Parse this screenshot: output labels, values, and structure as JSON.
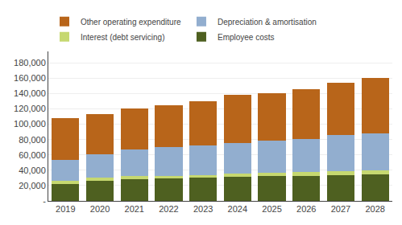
{
  "chart_data": {
    "type": "bar",
    "stacked": true,
    "categories": [
      "2019",
      "2020",
      "2021",
      "2022",
      "2023",
      "2024",
      "2025",
      "2026",
      "2027",
      "2028"
    ],
    "series": [
      {
        "name": "Employee costs",
        "color": "#4E6020",
        "values": [
          22000,
          26000,
          28000,
          29000,
          30000,
          31000,
          32000,
          33000,
          34000,
          35000
        ]
      },
      {
        "name": "Interest (debt servicing)",
        "color": "#C6D870",
        "values": [
          4000,
          4000,
          4000,
          4000,
          4000,
          5000,
          5000,
          5000,
          5000,
          5000
        ]
      },
      {
        "name": "Depreciation & amortisation",
        "color": "#92AECF",
        "values": [
          27000,
          31000,
          35000,
          37000,
          38000,
          40000,
          42000,
          43000,
          47000,
          48000
        ]
      },
      {
        "name": "Other operating expenditure",
        "color": "#B8651A",
        "values": [
          55000,
          52000,
          54000,
          55000,
          58000,
          62000,
          62000,
          65000,
          68000,
          72000
        ]
      }
    ],
    "ylim": [
      0,
      195000
    ],
    "yticks": [
      {
        "value": 0,
        "label": "-"
      },
      {
        "value": 20000,
        "label": "20,000"
      },
      {
        "value": 40000,
        "label": "40,000"
      },
      {
        "value": 60000,
        "label": "60,000"
      },
      {
        "value": 80000,
        "label": "80,000"
      },
      {
        "value": 100000,
        "label": "100,000"
      },
      {
        "value": 120000,
        "label": "120,000"
      },
      {
        "value": 140000,
        "label": "140,000"
      },
      {
        "value": 160000,
        "label": "160,000"
      },
      {
        "value": 180000,
        "label": "180,000"
      }
    ],
    "grid": true,
    "legend": "upper left"
  }
}
